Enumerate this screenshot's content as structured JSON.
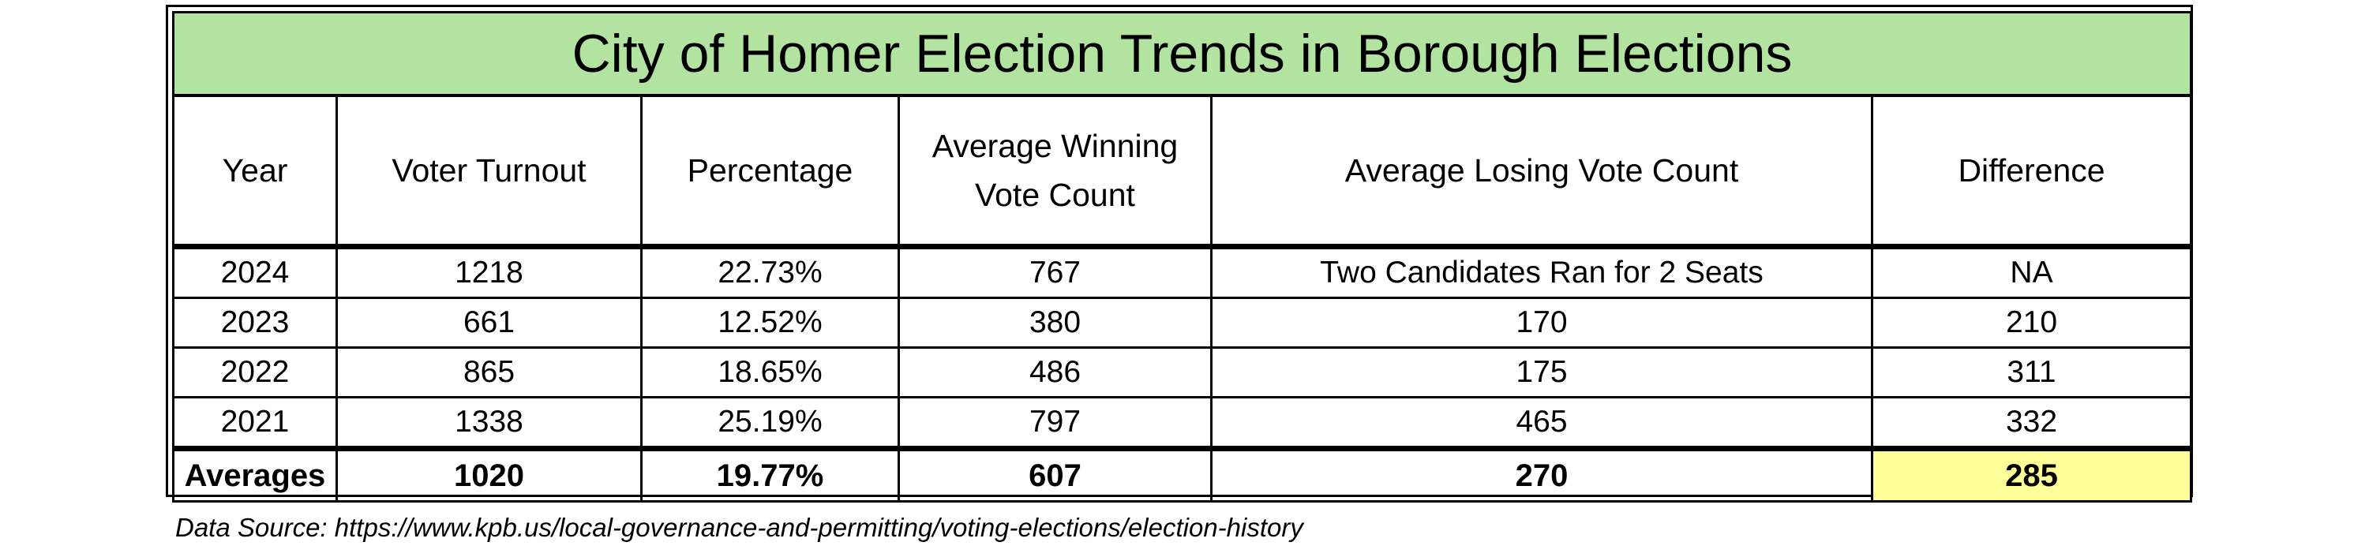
{
  "title": "City of Homer Election Trends in Borough Elections",
  "columns": {
    "year": "Year",
    "turnout": "Voter Turnout",
    "percentage": "Percentage",
    "avg_win_line1": "Average Winning",
    "avg_win_line2": "Vote Count",
    "avg_lose": "Average Losing Vote Count",
    "difference": "Difference"
  },
  "rows": [
    {
      "year": "2024",
      "turnout": "1218",
      "percentage": "22.73%",
      "avg_win": "767",
      "avg_lose": "Two Candidates Ran for 2 Seats",
      "difference": "NA"
    },
    {
      "year": "2023",
      "turnout": "661",
      "percentage": "12.52%",
      "avg_win": "380",
      "avg_lose": "170",
      "difference": "210"
    },
    {
      "year": "2022",
      "turnout": "865",
      "percentage": "18.65%",
      "avg_win": "486",
      "avg_lose": "175",
      "difference": "311"
    },
    {
      "year": "2021",
      "turnout": "1338",
      "percentage": "25.19%",
      "avg_win": "797",
      "avg_lose": "465",
      "difference": "332"
    }
  ],
  "averages": {
    "label": "Averages",
    "turnout": "1020",
    "percentage": "19.77%",
    "avg_win": "607",
    "avg_lose": "270",
    "difference": "285"
  },
  "source": "Data Source:  https://www.kpb.us/local-governance-and-permitting/voting-elections/election-history",
  "colors": {
    "title_bg": "#b3e3a1",
    "highlight": "#ffff99"
  }
}
